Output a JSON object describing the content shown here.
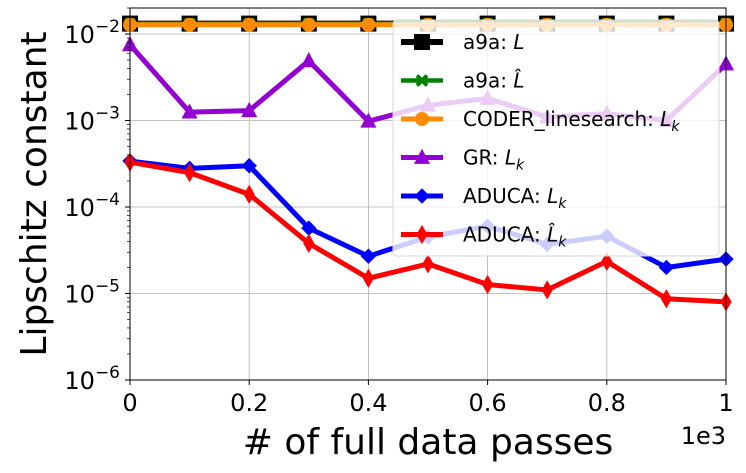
{
  "chart_data": {
    "type": "line",
    "xlabel": "# of full data passes",
    "ylabel": "Lipschitz constant",
    "x_scale_label": "1e3",
    "x_scale": "linear",
    "y_scale": "log",
    "xlim": [
      0,
      1000
    ],
    "ylim": [
      1e-06,
      0.02
    ],
    "grid": true,
    "legend_position": "top-right",
    "x_ticks": [
      {
        "value": 0,
        "label": "0"
      },
      {
        "value": 200,
        "label": "0.2"
      },
      {
        "value": 400,
        "label": "0.4"
      },
      {
        "value": 600,
        "label": "0.6"
      },
      {
        "value": 800,
        "label": "0.8"
      },
      {
        "value": 1000,
        "label": "1"
      }
    ],
    "y_ticks": [
      {
        "value": 1e-06,
        "label": "10",
        "exp": "−6"
      },
      {
        "value": 1e-05,
        "label": "10",
        "exp": "−5"
      },
      {
        "value": 0.0001,
        "label": "10",
        "exp": "−4"
      },
      {
        "value": 0.001,
        "label": "10",
        "exp": "−3"
      },
      {
        "value": 0.01,
        "label": "10",
        "exp": "−2"
      }
    ],
    "x": [
      0,
      100,
      200,
      300,
      400,
      500,
      600,
      700,
      800,
      900,
      1000
    ],
    "series": [
      {
        "name": "a9a: L",
        "legend_main": "a9a: ",
        "legend_sym": "L",
        "legend_sub": "",
        "hat": false,
        "color": "#000000",
        "marker": "square",
        "values": [
          0.0132,
          0.0132,
          0.0132,
          0.0132,
          0.0132,
          0.0132,
          0.0132,
          0.0132,
          0.0132,
          0.0132,
          0.0132
        ]
      },
      {
        "name": "a9a: L̂",
        "legend_main": "a9a: ",
        "legend_sym": "L",
        "legend_sub": "",
        "hat": true,
        "color": "#008000",
        "marker": "x",
        "values": [
          0.0132,
          0.0132,
          0.0132,
          0.0132,
          0.0132,
          0.0132,
          0.0132,
          0.0132,
          0.0132,
          0.0132,
          0.0132
        ]
      },
      {
        "name": "CODER_linesearch: L_k",
        "legend_main": "CODER_linesearch: ",
        "legend_sym": "L",
        "legend_sub": "k",
        "hat": false,
        "color": "#ff8c00",
        "marker": "circle",
        "values": [
          0.0128,
          0.0128,
          0.0128,
          0.0128,
          0.0128,
          0.0128,
          0.0128,
          0.0128,
          0.0128,
          0.0128,
          0.0128
        ]
      },
      {
        "name": "GR: L_k",
        "legend_main": "GR: ",
        "legend_sym": "L",
        "legend_sub": "k",
        "hat": false,
        "color": "#9400d3",
        "marker": "triangle",
        "values": [
          0.0075,
          0.00125,
          0.0013,
          0.0049,
          0.00098,
          0.0015,
          0.0018,
          0.0011,
          0.0012,
          0.001,
          0.0045
        ]
      },
      {
        "name": "ADUCA: L_k",
        "legend_main": "ADUCA: ",
        "legend_sym": "L",
        "legend_sub": "k",
        "hat": false,
        "color": "#0000ff",
        "marker": "diamond",
        "values": [
          0.00034,
          0.00028,
          0.0003,
          5.7e-05,
          2.7e-05,
          4.5e-05,
          6e-05,
          3.7e-05,
          4.6e-05,
          2e-05,
          2.5e-05
        ]
      },
      {
        "name": "ADUCA: L̂_k",
        "legend_main": "ADUCA: ",
        "legend_sym": "L",
        "legend_sub": "k",
        "hat": true,
        "color": "#ff0000",
        "marker": "thin_diamond",
        "values": [
          0.00033,
          0.00025,
          0.00014,
          3.8e-05,
          1.5e-05,
          2.2e-05,
          1.27e-05,
          1.1e-05,
          2.35e-05,
          8.7e-06,
          8e-06
        ]
      }
    ]
  }
}
